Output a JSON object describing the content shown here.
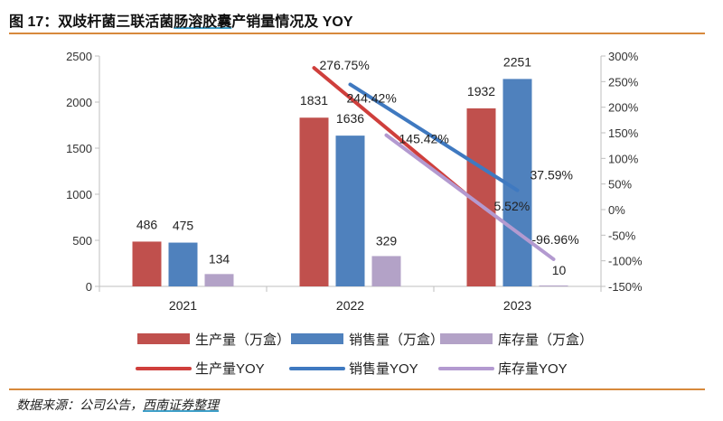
{
  "header": {
    "title_prefix": "图 17：双歧杆菌三联活菌",
    "title_highlight": "肠溶胶囊",
    "title_suffix": "产销量情况及 YOY"
  },
  "footer": {
    "source_prefix": "数据来源：公司公告，",
    "source_highlight": "西南证券整理"
  },
  "colors": {
    "rule": "#d7893c",
    "production": "#c0504d",
    "sales": "#4f81bd",
    "inventory": "#b3a2c7",
    "production_yoy": "#cf3f3c",
    "sales_yoy": "#3f79c0",
    "inventory_yoy": "#b39ad0"
  },
  "chart_data": {
    "type": "bar",
    "categories": [
      "2021",
      "2022",
      "2023"
    ],
    "left_axis": {
      "ylim": [
        0,
        2500
      ],
      "ticks": [
        "0",
        "500",
        "1000",
        "1500",
        "2000",
        "2500"
      ]
    },
    "right_axis": {
      "ylim": [
        -150,
        300
      ],
      "ticks": [
        "300%",
        "250%",
        "200%",
        "150%",
        "100%",
        "50%",
        "0%",
        "-50%",
        "-100%",
        "-150%"
      ]
    },
    "series": [
      {
        "name": "生产量（万盒）",
        "kind": "bar",
        "values": [
          486,
          1831,
          1932
        ],
        "labels": [
          "486",
          "1831",
          "1932"
        ]
      },
      {
        "name": "销售量（万盒）",
        "kind": "bar",
        "values": [
          475,
          1636,
          2251
        ],
        "labels": [
          "475",
          "1636",
          "2251"
        ]
      },
      {
        "name": "库存量（万盒）",
        "kind": "bar",
        "values": [
          134,
          329,
          10
        ],
        "labels": [
          "134",
          "329",
          "10"
        ]
      },
      {
        "name": "生产量YOY",
        "kind": "line",
        "x": [
          "2022",
          "2023"
        ],
        "values": [
          276.75,
          5.52
        ],
        "labels": [
          "276.75%",
          "5.52%"
        ]
      },
      {
        "name": "销售量YOY",
        "kind": "line",
        "x": [
          "2022",
          "2023"
        ],
        "values": [
          244.42,
          37.59
        ],
        "labels": [
          "244.42%",
          "37.59%"
        ]
      },
      {
        "name": "库存量YOY",
        "kind": "line",
        "x": [
          "2022",
          "2023"
        ],
        "values": [
          145.42,
          -96.96
        ],
        "labels": [
          "145.42%",
          "-96.96%"
        ]
      }
    ],
    "legend": "bottom",
    "grid": false
  }
}
